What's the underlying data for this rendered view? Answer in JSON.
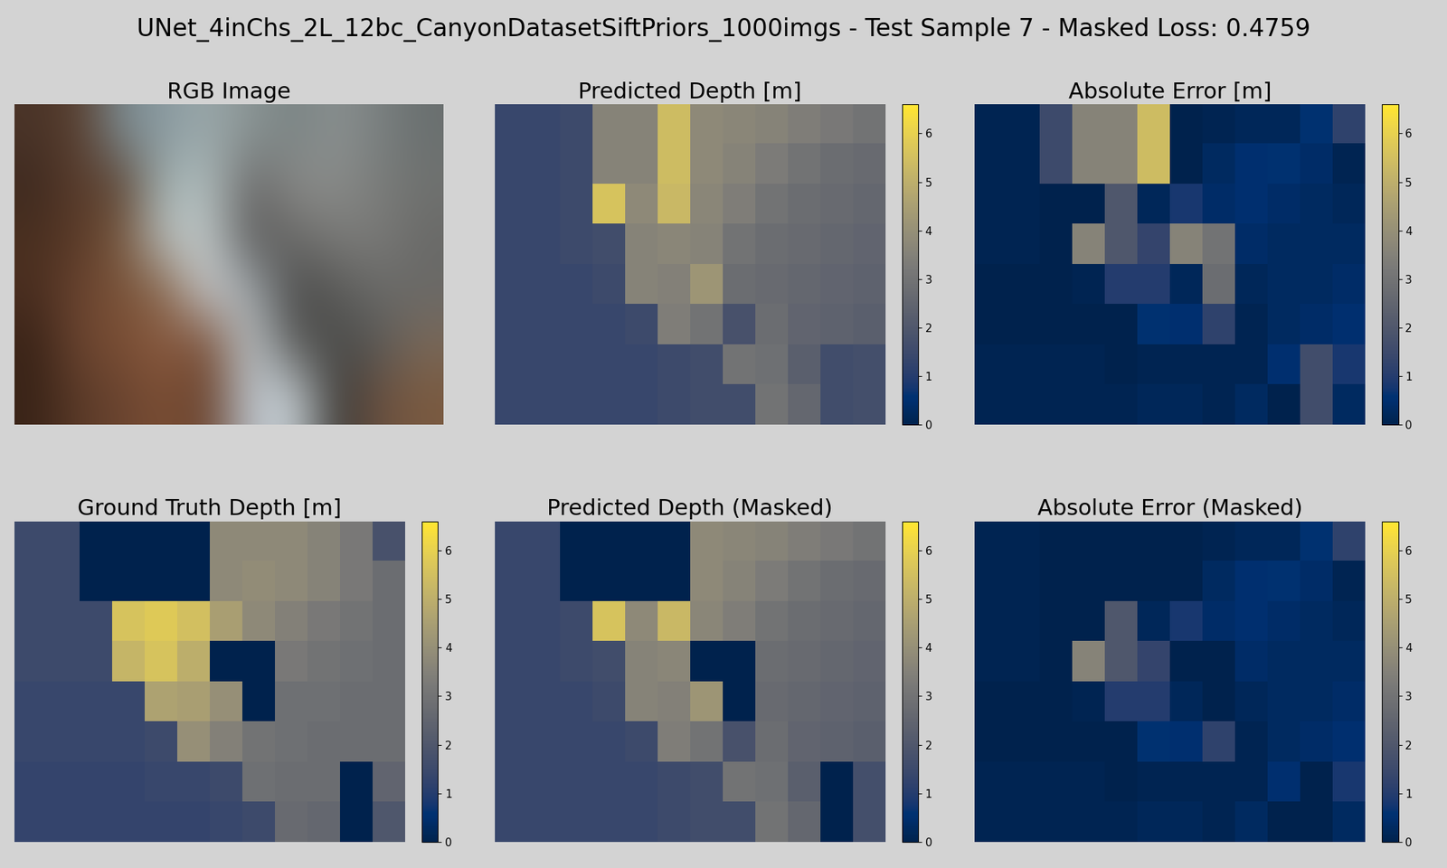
{
  "title": "UNet_4inChs_2L_12bc_CanyonDatasetSiftPriors_1000imgs - Test Sample 7 - Masked Loss: 0.4759",
  "chart_data": [
    {
      "type": "image",
      "title": "RGB Image",
      "tick_labels": false,
      "pixels": [
        [
          "#4a3428",
          "#5a4030",
          "#7a8a90",
          "#8a9aa0",
          "#9aa8aa",
          "#8a9494",
          "#7a8484",
          "#8a9090",
          "#7a8080",
          "#6a7070"
        ],
        [
          "#3e2a20",
          "#5a3c2c",
          "#5e4838",
          "#a0b0b0",
          "#b0bcbc",
          "#6a6a6a",
          "#8a8a88",
          "#8a8c8a",
          "#7a7c7a",
          "#707270"
        ],
        [
          "#4a3020",
          "#5a3a28",
          "#7a5a40",
          "#b8c0c0",
          "#c0c8c8",
          "#5a5a5a",
          "#6a6a68",
          "#7a7a78",
          "#7a7a78",
          "#6a6a68"
        ],
        [
          "#4a2e20",
          "#6a4430",
          "#7a5238",
          "#8a6a50",
          "#c8ccd0",
          "#a0a8ac",
          "#4a4a4a",
          "#5a5a58",
          "#6a6a68",
          "#6a6a68"
        ],
        [
          "#3a2418",
          "#6a4430",
          "#7a4e34",
          "#8a5a40",
          "#7a5038",
          "#c0c8cc",
          "#5a5a58",
          "#4a4a48",
          "#5a5a58",
          "#7a6858"
        ],
        [
          "#3a2418",
          "#5a3a28",
          "#6a4430",
          "#7a4e34",
          "#6a4430",
          "#b8c0c8",
          "#c8d0d4",
          "#3a3a38",
          "#6a5040",
          "#7a5a40"
        ]
      ]
    },
    {
      "type": "heatmap",
      "title": "Predicted Depth [m]",
      "tick_labels": false,
      "colorbar_range": [
        0,
        6.6
      ],
      "colorbar_ticks": [
        0,
        1,
        2,
        3,
        4,
        5,
        6
      ],
      "cells": [
        [
          1.4,
          1.4,
          1.5,
          3.6,
          3.6,
          5.4,
          3.8,
          3.7,
          3.6,
          3.4,
          3.2,
          3.0
        ],
        [
          1.4,
          1.4,
          1.5,
          3.6,
          3.6,
          5.4,
          3.8,
          3.6,
          3.3,
          3.0,
          2.8,
          2.7
        ],
        [
          1.4,
          1.4,
          1.5,
          5.6,
          3.8,
          5.3,
          3.7,
          3.4,
          3.0,
          2.8,
          2.7,
          2.6
        ],
        [
          1.4,
          1.4,
          1.5,
          1.6,
          3.6,
          3.7,
          3.6,
          3.0,
          2.8,
          2.7,
          2.6,
          2.5
        ],
        [
          1.4,
          1.4,
          1.4,
          1.5,
          3.6,
          3.5,
          4.2,
          2.8,
          2.7,
          2.6,
          2.5,
          2.4
        ],
        [
          1.4,
          1.4,
          1.4,
          1.4,
          1.5,
          3.4,
          3.0,
          1.8,
          2.8,
          2.5,
          2.4,
          2.3
        ],
        [
          1.4,
          1.4,
          1.4,
          1.4,
          1.4,
          1.5,
          1.6,
          3.0,
          2.9,
          2.3,
          1.6,
          1.7
        ],
        [
          1.4,
          1.4,
          1.4,
          1.4,
          1.4,
          1.5,
          1.6,
          1.6,
          3.0,
          2.6,
          1.6,
          1.7
        ]
      ]
    },
    {
      "type": "heatmap",
      "title": "Absolute Error [m]",
      "tick_labels": false,
      "colorbar_range": [
        0,
        6.6
      ],
      "colorbar_ticks": [
        0,
        1,
        2,
        3,
        4,
        5,
        6
      ],
      "cells": [
        [
          0.1,
          0.1,
          1.5,
          3.6,
          3.6,
          5.4,
          0.0,
          0.1,
          0.2,
          0.2,
          0.6,
          1.2
        ],
        [
          0.1,
          0.1,
          1.5,
          3.6,
          3.6,
          5.4,
          0.0,
          0.3,
          0.5,
          0.6,
          0.4,
          0.1
        ],
        [
          0.1,
          0.1,
          0.0,
          0.0,
          2.0,
          0.2,
          0.8,
          0.4,
          0.5,
          0.4,
          0.3,
          0.2
        ],
        [
          0.1,
          0.1,
          0.0,
          3.6,
          2.0,
          1.3,
          3.6,
          3.0,
          0.4,
          0.3,
          0.3,
          0.3
        ],
        [
          0.0,
          0.0,
          0.0,
          0.1,
          1.0,
          1.0,
          0.2,
          2.8,
          0.2,
          0.3,
          0.3,
          0.4
        ],
        [
          0.0,
          0.0,
          0.0,
          0.0,
          0.0,
          0.6,
          0.5,
          1.2,
          0.1,
          0.3,
          0.4,
          0.5
        ],
        [
          0.1,
          0.1,
          0.1,
          0.1,
          0.0,
          0.1,
          0.1,
          0.1,
          0.1,
          0.5,
          1.6,
          0.8
        ],
        [
          0.1,
          0.1,
          0.1,
          0.1,
          0.1,
          0.2,
          0.2,
          0.1,
          0.3,
          0.0,
          1.6,
          0.3
        ]
      ]
    },
    {
      "type": "heatmap",
      "title": "Ground Truth Depth [m]",
      "tick_labels": false,
      "colorbar_range": [
        0,
        6.6
      ],
      "colorbar_ticks": [
        0,
        1,
        2,
        3,
        4,
        5,
        6
      ],
      "cells": [
        [
          1.5,
          1.5,
          0,
          0,
          0,
          0,
          3.8,
          3.8,
          3.8,
          3.6,
          3.2,
          1.8
        ],
        [
          1.5,
          1.5,
          0,
          0,
          0,
          0,
          3.8,
          3.9,
          3.8,
          3.6,
          3.2,
          2.8
        ],
        [
          1.5,
          1.5,
          1.5,
          5.6,
          5.8,
          5.5,
          4.5,
          3.8,
          3.5,
          3.2,
          3.0,
          2.8
        ],
        [
          1.5,
          1.5,
          1.5,
          5.2,
          5.6,
          5.0,
          0,
          0,
          3.2,
          3.0,
          2.9,
          2.8
        ],
        [
          1.4,
          1.4,
          1.4,
          1.4,
          4.6,
          4.5,
          4.0,
          0,
          2.9,
          2.9,
          2.8,
          2.8
        ],
        [
          1.4,
          1.4,
          1.4,
          1.4,
          1.5,
          4.0,
          3.5,
          3.0,
          2.9,
          2.8,
          2.8,
          2.8
        ],
        [
          1.3,
          1.3,
          1.3,
          1.3,
          1.4,
          1.4,
          1.5,
          2.9,
          2.8,
          2.8,
          0,
          2.5
        ],
        [
          1.3,
          1.3,
          1.3,
          1.3,
          1.3,
          1.3,
          1.4,
          1.5,
          2.7,
          2.6,
          0,
          2.0
        ]
      ]
    },
    {
      "type": "heatmap",
      "title": "Predicted Depth (Masked)",
      "tick_labels": false,
      "colorbar_range": [
        0,
        6.6
      ],
      "colorbar_ticks": [
        0,
        1,
        2,
        3,
        4,
        5,
        6
      ],
      "cells": [
        [
          1.4,
          1.4,
          0,
          0,
          0,
          0,
          3.8,
          3.7,
          3.6,
          3.4,
          3.2,
          3.0
        ],
        [
          1.4,
          1.4,
          0,
          0,
          0,
          0,
          3.8,
          3.6,
          3.3,
          3.0,
          2.8,
          2.7
        ],
        [
          1.4,
          1.4,
          1.5,
          5.6,
          3.8,
          5.3,
          3.7,
          3.4,
          3.0,
          2.8,
          2.7,
          2.6
        ],
        [
          1.4,
          1.4,
          1.5,
          1.6,
          3.6,
          3.7,
          0,
          0,
          2.8,
          2.7,
          2.6,
          2.5
        ],
        [
          1.4,
          1.4,
          1.4,
          1.5,
          3.6,
          3.5,
          4.2,
          0,
          2.7,
          2.6,
          2.5,
          2.4
        ],
        [
          1.4,
          1.4,
          1.4,
          1.4,
          1.5,
          3.4,
          3.0,
          1.8,
          2.8,
          2.5,
          2.4,
          2.3
        ],
        [
          1.4,
          1.4,
          1.4,
          1.4,
          1.4,
          1.5,
          1.6,
          3.0,
          2.9,
          2.3,
          0,
          1.7
        ],
        [
          1.4,
          1.4,
          1.4,
          1.4,
          1.4,
          1.5,
          1.6,
          1.6,
          3.0,
          2.6,
          0,
          1.7
        ]
      ]
    },
    {
      "type": "heatmap",
      "title": "Absolute Error (Masked)",
      "tick_labels": false,
      "colorbar_range": [
        0,
        6.6
      ],
      "colorbar_ticks": [
        0,
        1,
        2,
        3,
        4,
        5,
        6
      ],
      "cells": [
        [
          0.1,
          0.1,
          0,
          0,
          0,
          0,
          0.0,
          0.1,
          0.2,
          0.2,
          0.6,
          1.2
        ],
        [
          0.1,
          0.1,
          0,
          0,
          0,
          0,
          0.0,
          0.3,
          0.5,
          0.6,
          0.4,
          0.1
        ],
        [
          0.1,
          0.1,
          0.0,
          0.0,
          2.0,
          0.2,
          0.8,
          0.4,
          0.5,
          0.4,
          0.3,
          0.2
        ],
        [
          0.1,
          0.1,
          0.0,
          3.6,
          2.0,
          1.3,
          0,
          0,
          0.4,
          0.3,
          0.3,
          0.3
        ],
        [
          0.0,
          0.0,
          0.0,
          0.1,
          1.0,
          1.0,
          0.2,
          0,
          0.2,
          0.3,
          0.3,
          0.4
        ],
        [
          0.0,
          0.0,
          0.0,
          0.0,
          0.0,
          0.6,
          0.5,
          1.2,
          0.1,
          0.3,
          0.4,
          0.5
        ],
        [
          0.1,
          0.1,
          0.1,
          0.1,
          0.0,
          0.1,
          0.1,
          0.1,
          0.1,
          0.5,
          0,
          0.8
        ],
        [
          0.1,
          0.1,
          0.1,
          0.1,
          0.1,
          0.2,
          0.2,
          0.1,
          0.3,
          0.0,
          0,
          0.3
        ]
      ]
    }
  ]
}
